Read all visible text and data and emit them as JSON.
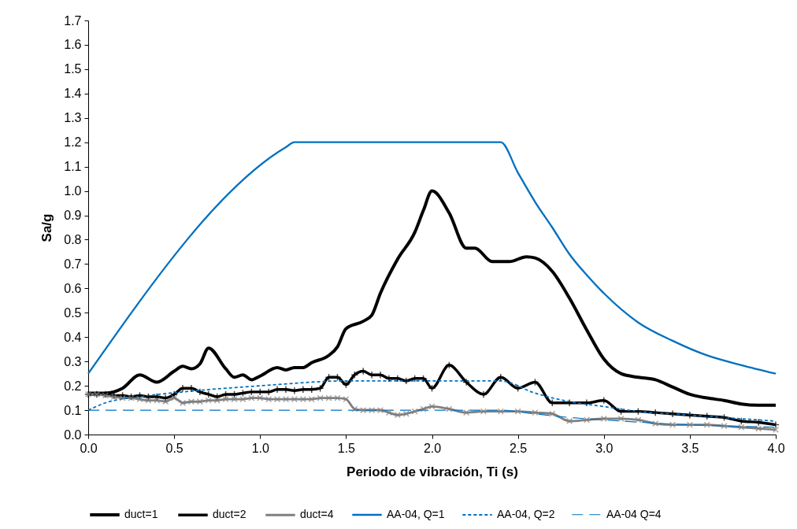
{
  "chart_data": {
    "type": "line",
    "xlabel": "Periodo de vibración, Ti (s)",
    "ylabel": "Sa/g",
    "xlim": [
      0,
      4
    ],
    "ylim": [
      0,
      1.7
    ],
    "xticks": [
      {
        "value": 0,
        "label": "0.0"
      },
      0.5,
      {
        "value": 1,
        "label": "1.0"
      },
      1.5,
      {
        "value": 2,
        "label": "2.0"
      },
      2.5,
      {
        "value": 3,
        "label": "3.0"
      },
      3.5,
      {
        "value": 4,
        "label": "4.0"
      }
    ],
    "yticks": [
      {
        "value": 0,
        "label": "0.0"
      },
      0.1,
      0.2,
      0.3,
      0.4,
      0.5,
      0.6,
      0.7,
      0.8,
      0.9,
      {
        "value": 1,
        "label": "1.0"
      },
      1.1,
      1.2,
      1.3,
      1.4,
      1.5,
      1.6,
      1.7
    ],
    "grid": false,
    "legend": "bottom",
    "series": [
      {
        "name": "duct=1",
        "color": "#000000",
        "line_style": "solid",
        "marker": "none",
        "x": [
          0,
          0.1,
          0.2,
          0.3,
          0.4,
          0.5,
          0.55,
          0.6,
          0.65,
          0.7,
          0.8,
          0.85,
          0.9,
          0.95,
          1.0,
          1.1,
          1.15,
          1.2,
          1.25,
          1.3,
          1.4,
          1.45,
          1.5,
          1.6,
          1.65,
          1.7,
          1.8,
          1.9,
          1.95,
          2.0,
          2.1,
          2.2,
          2.25,
          2.35,
          2.45,
          2.55,
          2.6,
          2.7,
          2.8,
          2.9,
          3.0,
          3.1,
          3.2,
          3.3,
          3.4,
          3.5,
          3.6,
          3.7,
          3.8,
          3.9,
          4.0
        ],
        "values": [
          0.17,
          0.17,
          0.19,
          0.245,
          0.215,
          0.26,
          0.28,
          0.27,
          0.29,
          0.355,
          0.27,
          0.235,
          0.245,
          0.225,
          0.24,
          0.275,
          0.265,
          0.275,
          0.275,
          0.295,
          0.325,
          0.36,
          0.435,
          0.465,
          0.49,
          0.58,
          0.72,
          0.83,
          0.92,
          1.0,
          0.91,
          0.765,
          0.765,
          0.71,
          0.71,
          0.73,
          0.725,
          0.67,
          0.56,
          0.43,
          0.31,
          0.25,
          0.235,
          0.225,
          0.195,
          0.165,
          0.15,
          0.14,
          0.125,
          0.12,
          0.12
        ]
      },
      {
        "name": "duct=2",
        "color": "#000000",
        "line_style": "solid",
        "marker": "cross",
        "x": [
          0,
          0.05,
          0.1,
          0.15,
          0.2,
          0.25,
          0.3,
          0.35,
          0.4,
          0.45,
          0.5,
          0.55,
          0.6,
          0.65,
          0.7,
          0.75,
          0.8,
          0.85,
          0.9,
          0.95,
          1.0,
          1.05,
          1.1,
          1.15,
          1.2,
          1.25,
          1.3,
          1.35,
          1.4,
          1.45,
          1.5,
          1.55,
          1.6,
          1.65,
          1.7,
          1.75,
          1.8,
          1.85,
          1.9,
          1.95,
          2.0,
          2.1,
          2.2,
          2.3,
          2.4,
          2.5,
          2.6,
          2.7,
          2.8,
          2.9,
          3.0,
          3.1,
          3.2,
          3.3,
          3.4,
          3.5,
          3.6,
          3.7,
          3.8,
          3.9,
          4.0
        ],
        "values": [
          0.165,
          0.165,
          0.165,
          0.16,
          0.16,
          0.155,
          0.16,
          0.155,
          0.155,
          0.15,
          0.165,
          0.19,
          0.19,
          0.175,
          0.165,
          0.155,
          0.165,
          0.165,
          0.17,
          0.175,
          0.175,
          0.175,
          0.185,
          0.185,
          0.18,
          0.185,
          0.185,
          0.19,
          0.235,
          0.235,
          0.205,
          0.245,
          0.26,
          0.245,
          0.245,
          0.23,
          0.23,
          0.22,
          0.23,
          0.23,
          0.19,
          0.285,
          0.215,
          0.165,
          0.235,
          0.19,
          0.215,
          0.13,
          0.13,
          0.13,
          0.14,
          0.095,
          0.095,
          0.09,
          0.085,
          0.08,
          0.075,
          0.07,
          0.055,
          0.05,
          0.04
        ]
      },
      {
        "name": "duct=4",
        "color": "#808080",
        "line_style": "solid",
        "marker": "x",
        "x": [
          0,
          0.05,
          0.1,
          0.15,
          0.2,
          0.25,
          0.3,
          0.35,
          0.4,
          0.45,
          0.5,
          0.55,
          0.6,
          0.65,
          0.7,
          0.75,
          0.8,
          0.85,
          0.9,
          0.95,
          1.0,
          1.05,
          1.1,
          1.15,
          1.2,
          1.25,
          1.3,
          1.35,
          1.4,
          1.45,
          1.5,
          1.55,
          1.6,
          1.65,
          1.7,
          1.75,
          1.8,
          1.85,
          1.9,
          1.95,
          2.0,
          2.1,
          2.2,
          2.3,
          2.4,
          2.5,
          2.6,
          2.7,
          2.8,
          2.9,
          3.0,
          3.1,
          3.2,
          3.3,
          3.4,
          3.5,
          3.6,
          3.7,
          3.8,
          3.9,
          4.0
        ],
        "values": [
          0.165,
          0.165,
          0.16,
          0.155,
          0.15,
          0.15,
          0.145,
          0.14,
          0.14,
          0.135,
          0.15,
          0.13,
          0.135,
          0.135,
          0.14,
          0.14,
          0.145,
          0.145,
          0.145,
          0.15,
          0.15,
          0.145,
          0.145,
          0.145,
          0.145,
          0.145,
          0.145,
          0.15,
          0.15,
          0.15,
          0.145,
          0.105,
          0.1,
          0.1,
          0.1,
          0.09,
          0.08,
          0.085,
          0.095,
          0.105,
          0.115,
          0.105,
          0.09,
          0.095,
          0.095,
          0.095,
          0.09,
          0.085,
          0.055,
          0.06,
          0.065,
          0.065,
          0.06,
          0.045,
          0.04,
          0.04,
          0.04,
          0.035,
          0.03,
          0.025,
          0.02
        ]
      },
      {
        "name": "AA-04, Q=1",
        "color": "#0070c0",
        "line_style": "solid",
        "marker": "none",
        "x": [
          0,
          1.15,
          1.2,
          2.38,
          2.4,
          2.5,
          2.6,
          2.7,
          2.8,
          2.9,
          3.0,
          3.2,
          3.4,
          3.6,
          3.8,
          4.0
        ],
        "values": [
          0.25,
          1.18,
          1.2,
          1.2,
          1.2,
          1.075,
          0.955,
          0.85,
          0.74,
          0.655,
          0.58,
          0.46,
          0.385,
          0.325,
          0.285,
          0.25
        ]
      },
      {
        "name": "AA-04, Q=2",
        "color": "#0070c0",
        "line_style": "dotted",
        "marker": "none",
        "x": [
          0,
          0.1,
          0.3,
          0.55,
          1.0,
          1.5,
          2.4,
          2.6,
          2.8,
          3.0,
          3.2,
          3.5,
          3.8,
          4.0
        ],
        "values": [
          0.1,
          0.13,
          0.155,
          0.175,
          0.2,
          0.22,
          0.22,
          0.17,
          0.135,
          0.115,
          0.095,
          0.08,
          0.065,
          0.055
        ]
      },
      {
        "name": "AA-04 Q=4",
        "color": "#0070c0",
        "line_style": "dashed",
        "marker": "none",
        "x": [
          0,
          0.55,
          1.0,
          1.5,
          2.4,
          2.6,
          2.8,
          3.0,
          3.5,
          4.0
        ],
        "values": [
          0.1,
          0.1,
          0.1,
          0.1,
          0.1,
          0.085,
          0.07,
          0.06,
          0.04,
          0.03
        ]
      }
    ]
  }
}
